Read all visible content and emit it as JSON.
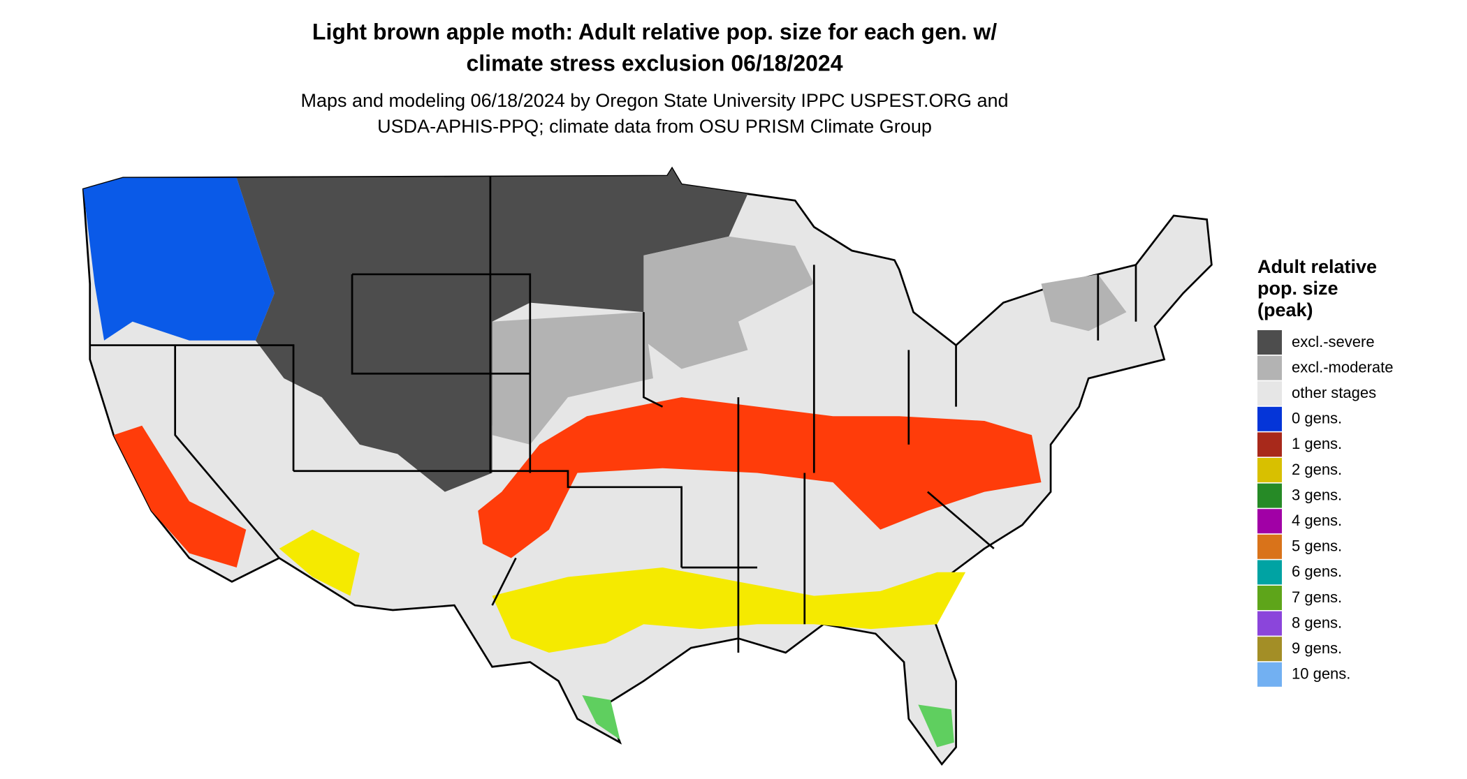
{
  "title": [
    "Light brown apple moth: Adult relative pop. size for each gen. w/",
    "climate stress exclusion 06/18/2024"
  ],
  "subtitle": [
    "Maps and modeling 06/18/2024 by Oregon State University IPPC USPEST.ORG and",
    "USDA-APHIS-PPQ; climate data from OSU PRISM Climate Group"
  ],
  "legend": {
    "title": [
      "Adult relative",
      "pop. size",
      "(peak)"
    ],
    "items": [
      {
        "label": "excl.-severe",
        "color": "#4d4d4d"
      },
      {
        "label": "excl.-moderate",
        "color": "#b3b3b3"
      },
      {
        "label": "other stages",
        "color": "#e6e6e6"
      },
      {
        "label": "0 gens.",
        "color": "#0535d8"
      },
      {
        "label": "1 gens.",
        "color": "#a8291b"
      },
      {
        "label": "2 gens.",
        "color": "#d8c000"
      },
      {
        "label": "3 gens.",
        "color": "#268a26"
      },
      {
        "label": "4 gens.",
        "color": "#a100a6"
      },
      {
        "label": "5 gens.",
        "color": "#d9731a"
      },
      {
        "label": "6 gens.",
        "color": "#00a3a3"
      },
      {
        "label": "7 gens.",
        "color": "#5ea51a"
      },
      {
        "label": "8 gens.",
        "color": "#8b45db"
      },
      {
        "label": "9 gens.",
        "color": "#a38e26"
      },
      {
        "label": "10 gens.",
        "color": "#72b0f2"
      }
    ]
  }
}
